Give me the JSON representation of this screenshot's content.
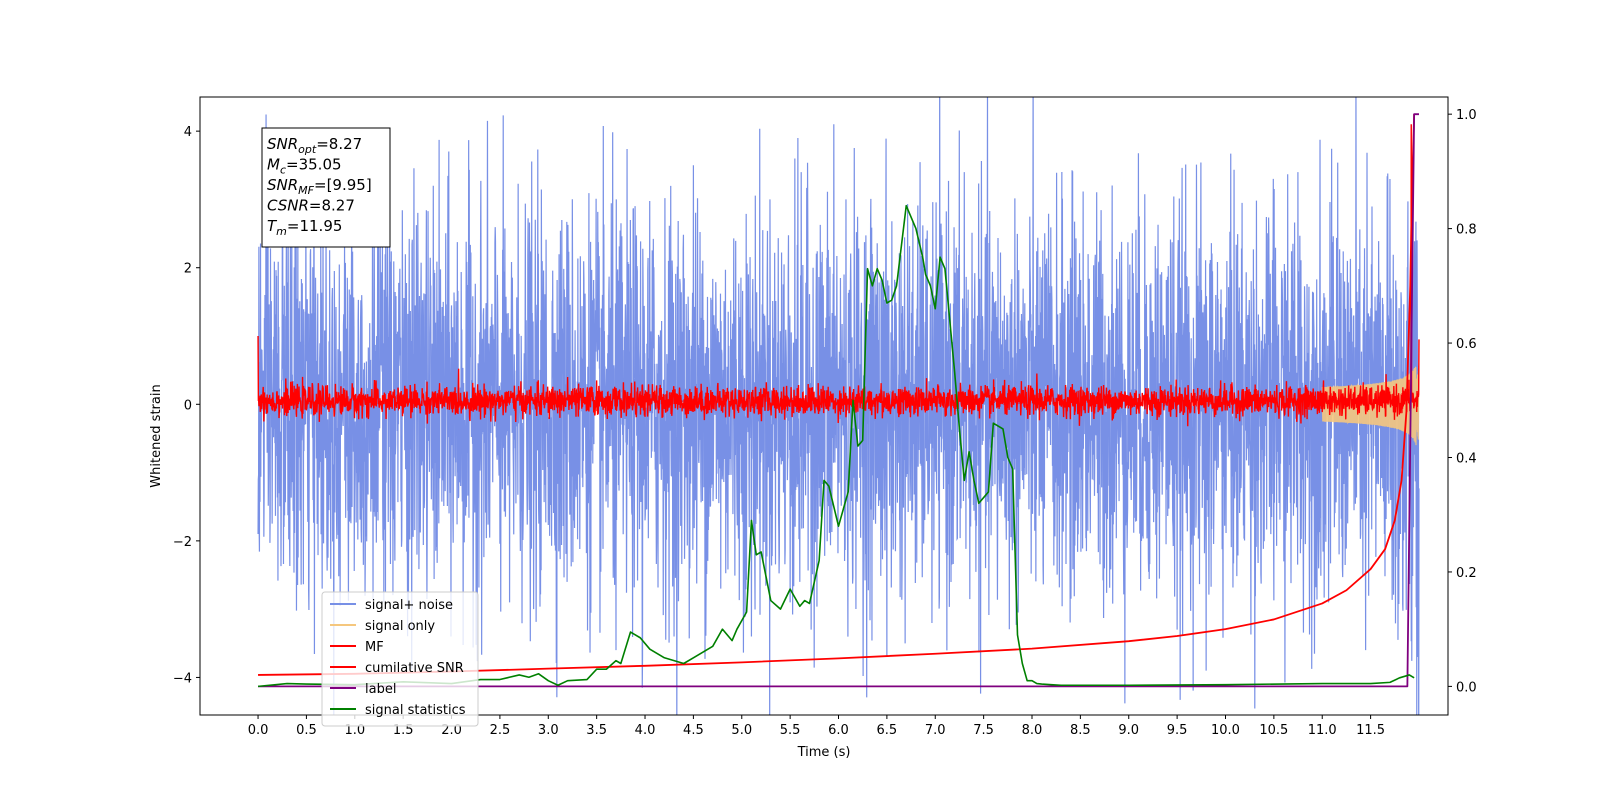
{
  "chart_data": {
    "type": "line",
    "title": "",
    "xlabel": "Time (s)",
    "ylabel_left": "Whitened strain",
    "ylabel_right": "",
    "xlim": [
      -0.6,
      12.3
    ],
    "ylim_left": [
      -4.55,
      4.5
    ],
    "ylim_right": [
      -0.05,
      1.03
    ],
    "grid": false,
    "legend_position": "lower-left",
    "x_ticks": [
      0.0,
      0.5,
      1.0,
      1.5,
      2.0,
      2.5,
      3.0,
      3.5,
      4.0,
      4.5,
      5.0,
      5.5,
      6.0,
      6.5,
      7.0,
      7.5,
      8.0,
      8.5,
      9.0,
      9.5,
      10.0,
      10.5,
      11.0,
      11.5
    ],
    "x_tick_labels": [
      "0.0",
      "0.5",
      "1.0",
      "1.5",
      "2.0",
      "2.5",
      "3.0",
      "3.5",
      "4.0",
      "4.5",
      "5.0",
      "5.5",
      "6.0",
      "6.5",
      "7.0",
      "7.5",
      "8.0",
      "8.5",
      "9.0",
      "9.5",
      "10.0",
      "10.5",
      "11.0",
      "11.5"
    ],
    "y_left_ticks": [
      -4,
      -2,
      0,
      2,
      4
    ],
    "y_left_tick_labels": [
      "−4",
      "−2",
      "0",
      "2",
      "4"
    ],
    "y_right_ticks": [
      0.0,
      0.2,
      0.4,
      0.6,
      0.8,
      1.0
    ],
    "y_right_tick_labels": [
      "0.0",
      "0.2",
      "0.4",
      "0.6",
      "0.8",
      "1.0"
    ],
    "annotation": {
      "lines": [
        {
          "label": "SNR",
          "sub": "opt",
          "value": "=8.27"
        },
        {
          "label": "M",
          "sub": "c",
          "value": "=35.05"
        },
        {
          "label": "SNR",
          "sub": "MF",
          "value": "=[9.95]"
        },
        {
          "label": "CSNR",
          "sub": "",
          "value": "=8.27"
        },
        {
          "label": "T",
          "sub": "m",
          "value": "=11.95"
        }
      ]
    },
    "series": [
      {
        "name": "signal+ noise",
        "axis": "left",
        "color": "#7890e6",
        "style": "noise",
        "x_range": [
          0.0,
          12.0
        ],
        "envelope": {
          "x": [
            0.0,
            11.5,
            12.0
          ],
          "lower": [
            -2.3,
            -2.3,
            -3.7
          ],
          "upper": [
            2.3,
            2.3,
            2.4
          ]
        },
        "notable_peaks": [
          {
            "x": 0.0,
            "y": 3.2
          },
          {
            "x": 0.0,
            "y": -1.9
          },
          {
            "x": 1.3,
            "y": -2.9
          },
          {
            "x": 2.6,
            "y": -2.9
          },
          {
            "x": 2.85,
            "y": -3.0
          },
          {
            "x": 3.7,
            "y": -3.6
          },
          {
            "x": 3.97,
            "y": -4.15
          },
          {
            "x": 4.3,
            "y": -3.4
          },
          {
            "x": 4.5,
            "y": 3.5
          },
          {
            "x": 5.1,
            "y": -3.4
          },
          {
            "x": 5.5,
            "y": -2.9
          },
          {
            "x": 5.6,
            "y": -2.6
          },
          {
            "x": 5.95,
            "y": 4.1
          },
          {
            "x": 5.55,
            "y": 3.6
          },
          {
            "x": 6.5,
            "y": -3.7
          },
          {
            "x": 7.3,
            "y": 3.4
          },
          {
            "x": 9.5,
            "y": -3.3
          },
          {
            "x": 9.8,
            "y": -3.9
          },
          {
            "x": 10.75,
            "y": 3.4
          },
          {
            "x": 11.45,
            "y": -3.6
          },
          {
            "x": 11.7,
            "y": 3.3
          },
          {
            "x": 11.98,
            "y": 2.4
          },
          {
            "x": 11.99,
            "y": -3.7
          }
        ]
      },
      {
        "name": "signal only",
        "axis": "left",
        "color": "#f5c77e",
        "style": "chirp",
        "x_range": [
          11.0,
          12.0
        ],
        "amplitude_end": 1.0
      },
      {
        "name": "MF",
        "axis": "left",
        "color": "#ff0000",
        "style": "noise",
        "x_range": [
          0.0,
          12.0
        ],
        "envelope": {
          "x": [
            0.0,
            12.0
          ],
          "lower": [
            -0.15,
            -0.15
          ],
          "upper": [
            0.25,
            0.25
          ]
        },
        "notable_peaks": [
          {
            "x": 0.0,
            "y": 1.0
          },
          {
            "x": 3.2,
            "y": 0.4
          },
          {
            "x": 3.5,
            "y": 0.35
          },
          {
            "x": 8.05,
            "y": 0.45
          },
          {
            "x": 11.92,
            "y": 4.1
          },
          {
            "x": 12.0,
            "y": 0.95
          }
        ]
      },
      {
        "name": "cumilative SNR",
        "axis": "right",
        "color": "#ff0000",
        "x": [
          0.0,
          1.0,
          2.0,
          3.0,
          4.0,
          5.0,
          6.0,
          7.0,
          8.0,
          9.0,
          9.5,
          10.0,
          10.5,
          11.0,
          11.25,
          11.5,
          11.65,
          11.75,
          11.82,
          11.87,
          11.91,
          11.93,
          11.95
        ],
        "y": [
          0.02,
          0.022,
          0.026,
          0.031,
          0.036,
          0.042,
          0.049,
          0.057,
          0.066,
          0.079,
          0.088,
          0.1,
          0.117,
          0.145,
          0.168,
          0.205,
          0.24,
          0.29,
          0.36,
          0.48,
          0.7,
          0.88,
          1.0
        ]
      },
      {
        "name": "label",
        "axis": "right",
        "color": "#7f007f",
        "x": [
          0.0,
          11.88,
          11.95,
          12.0
        ],
        "y": [
          0.0,
          0.0,
          1.0,
          1.0
        ]
      },
      {
        "name": "signal statistics",
        "axis": "right",
        "color": "#008000",
        "x": [
          0.0,
          0.3,
          0.5,
          1.0,
          1.5,
          2.0,
          2.3,
          2.5,
          2.7,
          2.8,
          2.9,
          3.0,
          3.1,
          3.2,
          3.4,
          3.5,
          3.6,
          3.7,
          3.75,
          3.85,
          3.95,
          4.05,
          4.2,
          4.3,
          4.4,
          4.5,
          4.6,
          4.7,
          4.8,
          4.9,
          4.95,
          5.05,
          5.1,
          5.15,
          5.2,
          5.3,
          5.4,
          5.5,
          5.6,
          5.65,
          5.7,
          5.8,
          5.85,
          5.9,
          6.0,
          6.1,
          6.15,
          6.2,
          6.25,
          6.3,
          6.35,
          6.4,
          6.45,
          6.5,
          6.55,
          6.6,
          6.7,
          6.8,
          6.87,
          6.9,
          6.95,
          7.0,
          7.05,
          7.1,
          7.2,
          7.25,
          7.3,
          7.35,
          7.4,
          7.45,
          7.5,
          7.55,
          7.6,
          7.7,
          7.75,
          7.8,
          7.85,
          7.9,
          7.95,
          8.0,
          8.05,
          8.1,
          8.2,
          8.3,
          8.5,
          9.0,
          10.0,
          11.0,
          11.5,
          11.7,
          11.8,
          11.9,
          11.95
        ],
        "y": [
          0.0,
          0.005,
          0.004,
          0.003,
          0.008,
          0.005,
          0.012,
          0.012,
          0.02,
          0.016,
          0.022,
          0.01,
          0.002,
          0.01,
          0.012,
          0.03,
          0.03,
          0.045,
          0.04,
          0.095,
          0.085,
          0.065,
          0.05,
          0.045,
          0.04,
          0.05,
          0.06,
          0.07,
          0.1,
          0.08,
          0.1,
          0.13,
          0.29,
          0.23,
          0.235,
          0.15,
          0.135,
          0.17,
          0.14,
          0.15,
          0.145,
          0.22,
          0.36,
          0.35,
          0.28,
          0.34,
          0.5,
          0.42,
          0.43,
          0.73,
          0.7,
          0.73,
          0.71,
          0.67,
          0.675,
          0.7,
          0.84,
          0.8,
          0.75,
          0.72,
          0.7,
          0.66,
          0.75,
          0.73,
          0.55,
          0.45,
          0.36,
          0.41,
          0.36,
          0.32,
          0.33,
          0.34,
          0.46,
          0.45,
          0.4,
          0.38,
          0.09,
          0.04,
          0.01,
          0.01,
          0.005,
          0.004,
          0.003,
          0.002,
          0.002,
          0.002,
          0.003,
          0.005,
          0.005,
          0.007,
          0.015,
          0.02,
          0.015
        ]
      }
    ]
  }
}
